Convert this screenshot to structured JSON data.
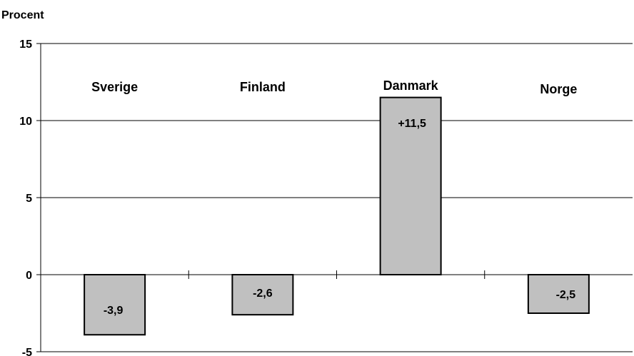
{
  "chart_data": {
    "type": "bar",
    "title": "",
    "ylabel": "Procent",
    "xlabel": "",
    "categories": [
      "Sverige",
      "Finland",
      "Danmark",
      "Norge"
    ],
    "values": [
      -3.9,
      -2.6,
      11.5,
      -2.5
    ],
    "data_labels": [
      "-3,9",
      "-2,6",
      "+11,5",
      "-2,5"
    ],
    "ylim": [
      -5,
      15
    ],
    "yticks": [
      15,
      10,
      5,
      0,
      -5
    ],
    "ytick_labels": [
      "15",
      "10",
      "5",
      "0",
      "-5"
    ],
    "grid": true,
    "legend": "none",
    "colors": {
      "bar_fill": "#c0c0c0",
      "bar_stroke": "#000000",
      "gridline": "#000000"
    }
  }
}
